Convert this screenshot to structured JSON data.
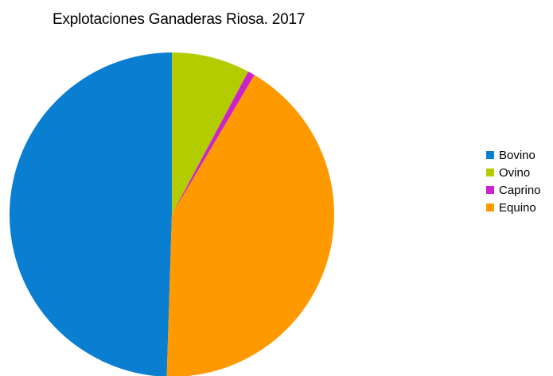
{
  "chart_data": {
    "type": "pie",
    "title": "Explotaciones Ganaderas Riosa. 2017",
    "categories": [
      "Bovino",
      "Ovino",
      "Caprino",
      "Equino"
    ],
    "values": [
      49.5,
      7.8,
      0.7,
      42.0
    ],
    "colors": [
      "#0a7fd1",
      "#b3cc00",
      "#cc22cc",
      "#ff9900"
    ],
    "legend_position": "right"
  }
}
